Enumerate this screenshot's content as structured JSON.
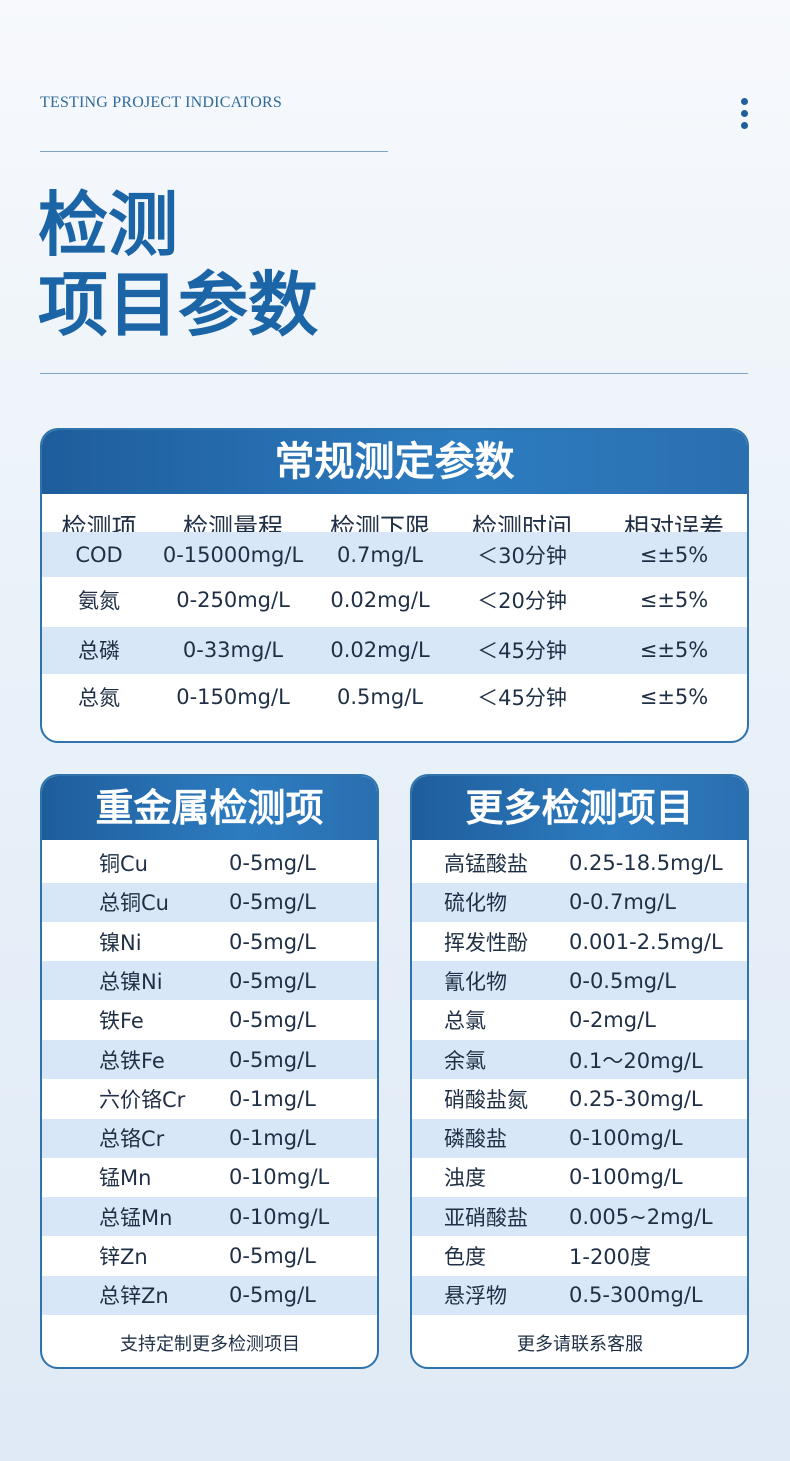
{
  "header": {
    "subtitle": "TESTING PROJECT INDICATORS",
    "title_line1": "检测",
    "title_line2": "项目参数"
  },
  "routine_table": {
    "title": "常规测定参数",
    "columns": [
      "检测项",
      "检测量程",
      "检测下限",
      "检测时间",
      "相对误差"
    ],
    "rows": [
      [
        "COD",
        "0-15000mg/L",
        "0.7mg/L",
        "＜30分钟",
        "≤±5%"
      ],
      [
        "氨氮",
        "0-250mg/L",
        "0.02mg/L",
        "＜20分钟",
        "≤±5%"
      ],
      [
        "总磷",
        "0-33mg/L",
        "0.02mg/L",
        "＜45分钟",
        "≤±5%"
      ],
      [
        "总氮",
        "0-150mg/L",
        "0.5mg/L",
        "＜45分钟",
        "≤±5%"
      ]
    ]
  },
  "heavy_metal_table": {
    "title": "重金属检测项",
    "rows": [
      [
        "铜Cu",
        "0-5mg/L"
      ],
      [
        "总铜Cu",
        "0-5mg/L"
      ],
      [
        "镍Ni",
        "0-5mg/L"
      ],
      [
        "总镍Ni",
        "0-5mg/L"
      ],
      [
        "铁Fe",
        "0-5mg/L"
      ],
      [
        "总铁Fe",
        "0-5mg/L"
      ],
      [
        "六价铬Cr",
        "0-1mg/L"
      ],
      [
        "总铬Cr",
        "0-1mg/L"
      ],
      [
        "锰Mn",
        "0-10mg/L"
      ],
      [
        "总锰Mn",
        "0-10mg/L"
      ],
      [
        "锌Zn",
        "0-5mg/L"
      ],
      [
        "总锌Zn",
        "0-5mg/L"
      ]
    ],
    "footer": "支持定制更多检测项目"
  },
  "more_table": {
    "title": "更多检测项目",
    "rows": [
      [
        "高锰酸盐",
        "0.25-18.5mg/L"
      ],
      [
        "硫化物",
        "0-0.7mg/L"
      ],
      [
        "挥发性酚",
        "0.001-2.5mg/L"
      ],
      [
        "氰化物",
        "0-0.5mg/L"
      ],
      [
        "总氯",
        "0-2mg/L"
      ],
      [
        "余氯",
        "0.1～20mg/L"
      ],
      [
        "硝酸盐氮",
        "0.25-30mg/L"
      ],
      [
        "磷酸盐",
        "0-100mg/L"
      ],
      [
        "浊度",
        "0-100mg/L"
      ],
      [
        "亚硝酸盐",
        "0.005~2mg/L"
      ],
      [
        "色度",
        "1-200度"
      ],
      [
        "悬浮物",
        "0.5-300mg/L"
      ]
    ],
    "footer": "更多请联系客服"
  }
}
